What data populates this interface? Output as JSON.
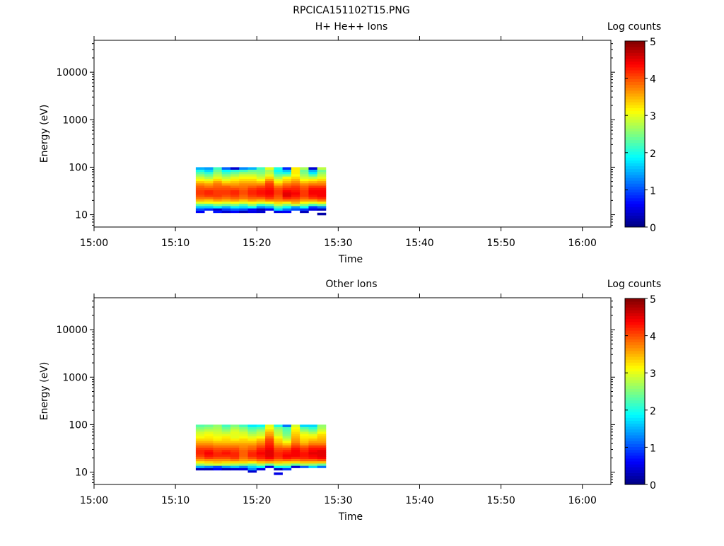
{
  "page_title": "RPCICA151102T15.PNG",
  "chart_data": [
    {
      "type": "heatmap",
      "title": "H+ He++ Ions",
      "xlabel": "Time",
      "ylabel": "Energy (eV)",
      "colorbar_label": "Log counts",
      "colorbar_ticks": [
        "0",
        "1",
        "2",
        "3",
        "4",
        "5"
      ],
      "color_range": [
        0,
        5
      ],
      "colormap": "jet",
      "x_range_minutes": [
        0,
        63.5
      ],
      "x_ticks": [
        "15:00",
        "15:10",
        "15:20",
        "15:30",
        "15:40",
        "15:50",
        "16:00"
      ],
      "y_scale": "log",
      "y_range": [
        5.5,
        47000
      ],
      "y_ticks": [
        "10",
        "100",
        "1000",
        "10000"
      ],
      "time_start_minutes": 12.5,
      "time_step_minutes": 1.066,
      "energies_eV": [
        9.3,
        10.4,
        11.6,
        13.0,
        14.5,
        16.2,
        18.1,
        20.2,
        22.5,
        25.2,
        28.1,
        31.4,
        35.0,
        39.1,
        43.7,
        48.8,
        54.5,
        60.8,
        67.9,
        75.9,
        84.7,
        94.6
      ],
      "values": [
        [
          null,
          null,
          0.6,
          1.0,
          1.6,
          2.3,
          3.0,
          3.5,
          3.8,
          4.0,
          4.1,
          4.1,
          4.0,
          3.9,
          3.7,
          3.4,
          3.1,
          2.9,
          2.6,
          2.3,
          2.0,
          1.5
        ],
        [
          null,
          null,
          null,
          0.8,
          1.6,
          2.2,
          3.1,
          3.4,
          3.8,
          4.1,
          4.2,
          4.2,
          4.0,
          3.8,
          3.6,
          3.3,
          3.0,
          2.7,
          2.4,
          2.1,
          1.7,
          1.4
        ],
        [
          null,
          null,
          0.7,
          0.4,
          1.8,
          2.5,
          3.1,
          3.6,
          3.9,
          4.1,
          4.1,
          4.1,
          4.0,
          3.9,
          3.8,
          3.6,
          3.3,
          3.0,
          2.8,
          2.6,
          2.4,
          2.2
        ],
        [
          null,
          null,
          0.4,
          0.9,
          1.5,
          2.4,
          3.0,
          3.5,
          3.8,
          4.0,
          4.1,
          4.1,
          4.0,
          3.9,
          3.6,
          3.3,
          3.0,
          2.8,
          2.5,
          2.2,
          1.9,
          1.1
        ],
        [
          null,
          null,
          0.6,
          1.1,
          1.8,
          2.5,
          3.1,
          3.6,
          3.9,
          4.1,
          4.2,
          4.2,
          4.0,
          3.8,
          3.6,
          3.4,
          3.2,
          3.0,
          2.7,
          2.4,
          2.1,
          0.4
        ],
        [
          null,
          null,
          0.3,
          1.0,
          1.7,
          2.2,
          3.0,
          3.4,
          3.8,
          3.9,
          4.0,
          4.0,
          3.9,
          3.8,
          3.7,
          3.5,
          3.3,
          3.1,
          2.9,
          2.6,
          2.2,
          1.3
        ],
        [
          null,
          null,
          0.5,
          0.6,
          1.9,
          2.6,
          3.1,
          3.6,
          3.9,
          4.1,
          4.2,
          4.2,
          4.1,
          3.9,
          3.7,
          3.5,
          3.3,
          3.1,
          2.9,
          2.6,
          2.4,
          1.5
        ],
        [
          null,
          null,
          0.4,
          0.3,
          1.3,
          2.1,
          3.0,
          3.5,
          3.9,
          4.2,
          4.3,
          4.3,
          4.2,
          4.0,
          3.7,
          3.4,
          3.1,
          2.9,
          2.7,
          2.5,
          2.4,
          2.2
        ],
        [
          null,
          null,
          null,
          0.6,
          1.5,
          2.3,
          3.1,
          3.7,
          4.1,
          4.3,
          4.4,
          4.4,
          4.3,
          4.2,
          4.1,
          3.9,
          3.6,
          3.3,
          3.0,
          2.8,
          2.7,
          3.0
        ],
        [
          null,
          null,
          0.5,
          1.7,
          2.2,
          2.8,
          3.3,
          3.7,
          3.9,
          4.0,
          4.1,
          4.1,
          4.0,
          3.8,
          3.5,
          3.2,
          3.0,
          2.7,
          2.4,
          2.1,
          1.9,
          2.0
        ],
        [
          null,
          null,
          0.6,
          1.2,
          1.9,
          2.5,
          3.2,
          3.8,
          4.2,
          4.5,
          4.5,
          4.4,
          4.2,
          4.0,
          3.8,
          3.5,
          3.3,
          3.1,
          2.5,
          2.0,
          1.6,
          0.8
        ],
        [
          null,
          null,
          null,
          1.0,
          1.4,
          2.8,
          3.5,
          3.8,
          4.1,
          4.3,
          4.4,
          4.3,
          4.2,
          4.1,
          3.9,
          3.7,
          3.5,
          3.3,
          3.1,
          3.2,
          3.2,
          3.2
        ],
        [
          null,
          null,
          0.3,
          0.9,
          1.9,
          2.5,
          3.1,
          3.6,
          3.9,
          4.1,
          4.1,
          4.1,
          4.0,
          3.9,
          3.7,
          3.4,
          3.1,
          2.9,
          2.7,
          2.5,
          2.4,
          2.7
        ],
        [
          null,
          null,
          null,
          0.5,
          0.9,
          2.2,
          3.0,
          3.6,
          4.1,
          4.3,
          4.4,
          4.4,
          4.3,
          4.1,
          3.8,
          3.5,
          3.2,
          2.8,
          2.3,
          1.8,
          1.5,
          0.4
        ],
        [
          null,
          0.2,
          null,
          0.3,
          1.2,
          2.4,
          3.2,
          3.8,
          4.2,
          4.4,
          4.4,
          4.4,
          4.3,
          4.1,
          3.8,
          3.6,
          3.3,
          3.0,
          2.8,
          2.6,
          2.4,
          2.8
        ]
      ]
    },
    {
      "type": "heatmap",
      "title": "Other Ions",
      "xlabel": "Time",
      "ylabel": "Energy (eV)",
      "colorbar_label": "Log counts",
      "colorbar_ticks": [
        "0",
        "1",
        "2",
        "3",
        "4",
        "5"
      ],
      "color_range": [
        0,
        5
      ],
      "colormap": "jet",
      "x_range_minutes": [
        0,
        63.5
      ],
      "x_ticks": [
        "15:00",
        "15:10",
        "15:20",
        "15:30",
        "15:40",
        "15:50",
        "16:00"
      ],
      "y_scale": "log",
      "y_range": [
        5.5,
        47000
      ],
      "y_ticks": [
        "10",
        "100",
        "1000",
        "10000"
      ],
      "time_start_minutes": 12.5,
      "time_step_minutes": 1.066,
      "energies_eV": [
        9.3,
        10.4,
        11.6,
        13.0,
        14.5,
        16.2,
        18.1,
        20.2,
        22.5,
        25.2,
        28.1,
        31.4,
        35.0,
        39.1,
        43.7,
        48.8,
        54.5,
        60.8,
        67.9,
        75.9,
        84.7,
        94.6
      ],
      "values": [
        [
          null,
          null,
          0.3,
          1.5,
          2.6,
          3.2,
          3.6,
          3.9,
          4.1,
          4.2,
          4.2,
          4.1,
          3.9,
          3.7,
          3.5,
          3.3,
          3.1,
          3.0,
          2.9,
          2.7,
          2.5,
          2.3
        ],
        [
          null,
          null,
          0.3,
          1.3,
          2.8,
          3.3,
          3.7,
          4.1,
          4.3,
          4.4,
          4.3,
          4.1,
          3.9,
          3.7,
          3.5,
          3.3,
          3.2,
          3.1,
          3.0,
          2.8,
          2.6,
          2.4
        ],
        [
          null,
          null,
          0.6,
          1.0,
          2.9,
          3.4,
          3.7,
          4.0,
          4.2,
          4.2,
          4.1,
          4.0,
          3.8,
          3.6,
          3.4,
          3.2,
          3.1,
          3.0,
          2.9,
          2.8,
          2.7,
          2.6
        ],
        [
          null,
          null,
          0.3,
          1.4,
          2.8,
          3.3,
          3.7,
          4.0,
          4.2,
          4.3,
          4.2,
          4.0,
          3.8,
          3.6,
          3.4,
          3.3,
          3.2,
          3.0,
          2.8,
          2.6,
          2.4,
          2.2
        ],
        [
          null,
          null,
          0.4,
          1.6,
          2.7,
          3.3,
          3.8,
          4.1,
          4.2,
          4.2,
          4.1,
          4.0,
          3.8,
          3.6,
          3.4,
          3.2,
          3.0,
          3.0,
          3.0,
          2.9,
          2.7,
          2.5
        ],
        [
          null,
          null,
          0.5,
          1.3,
          2.6,
          3.3,
          3.6,
          3.8,
          3.9,
          3.9,
          3.9,
          3.8,
          3.7,
          3.6,
          3.4,
          3.3,
          3.1,
          3.0,
          2.9,
          2.7,
          2.5,
          2.2
        ],
        [
          null,
          0.4,
          1.3,
          1.7,
          2.4,
          3.2,
          3.7,
          4.0,
          4.2,
          4.2,
          4.1,
          3.9,
          3.8,
          3.6,
          3.4,
          3.2,
          3.0,
          2.8,
          2.6,
          2.4,
          2.2,
          1.8
        ],
        [
          null,
          null,
          0.5,
          1.9,
          2.7,
          3.4,
          3.9,
          4.2,
          4.3,
          4.4,
          4.3,
          4.2,
          4.0,
          3.8,
          3.6,
          3.4,
          3.1,
          2.9,
          2.8,
          2.6,
          2.3,
          1.9
        ],
        [
          null,
          null,
          null,
          0.5,
          2.4,
          3.5,
          4.0,
          4.4,
          4.5,
          4.5,
          4.5,
          4.4,
          4.3,
          4.2,
          4.1,
          4.0,
          3.8,
          3.6,
          3.5,
          3.3,
          3.1,
          3.0
        ],
        [
          0.5,
          null,
          0.3,
          1.9,
          2.8,
          3.4,
          3.8,
          4.1,
          4.2,
          4.2,
          4.1,
          4.0,
          3.8,
          3.6,
          3.4,
          3.3,
          3.1,
          2.9,
          2.8,
          2.7,
          2.5,
          2.0
        ],
        [
          null,
          null,
          0.9,
          2.0,
          2.7,
          3.3,
          3.9,
          4.3,
          4.4,
          4.3,
          4.2,
          4.0,
          3.7,
          3.4,
          3.1,
          2.9,
          2.7,
          2.5,
          2.4,
          2.3,
          2.2,
          1.2
        ],
        [
          null,
          null,
          null,
          0.4,
          2.4,
          3.3,
          3.8,
          4.2,
          4.4,
          4.4,
          4.4,
          4.3,
          4.1,
          3.9,
          3.7,
          3.6,
          3.5,
          3.4,
          3.3,
          3.2,
          3.1,
          2.9
        ],
        [
          null,
          null,
          null,
          1.1,
          2.7,
          3.4,
          3.9,
          4.2,
          4.3,
          4.3,
          4.2,
          4.1,
          3.9,
          3.6,
          3.4,
          3.3,
          3.2,
          3.1,
          2.9,
          2.6,
          2.3,
          1.7
        ],
        [
          null,
          null,
          null,
          1.7,
          2.6,
          3.4,
          3.9,
          4.3,
          4.4,
          4.5,
          4.4,
          4.3,
          4.1,
          3.8,
          3.6,
          3.4,
          3.2,
          3.0,
          2.7,
          2.4,
          2.1,
          1.7
        ],
        [
          null,
          null,
          null,
          1.2,
          2.4,
          3.4,
          4.0,
          4.4,
          4.5,
          4.5,
          4.5,
          4.3,
          4.1,
          3.8,
          3.6,
          3.5,
          3.4,
          3.3,
          3.1,
          2.9,
          2.7,
          2.6
        ]
      ]
    }
  ]
}
